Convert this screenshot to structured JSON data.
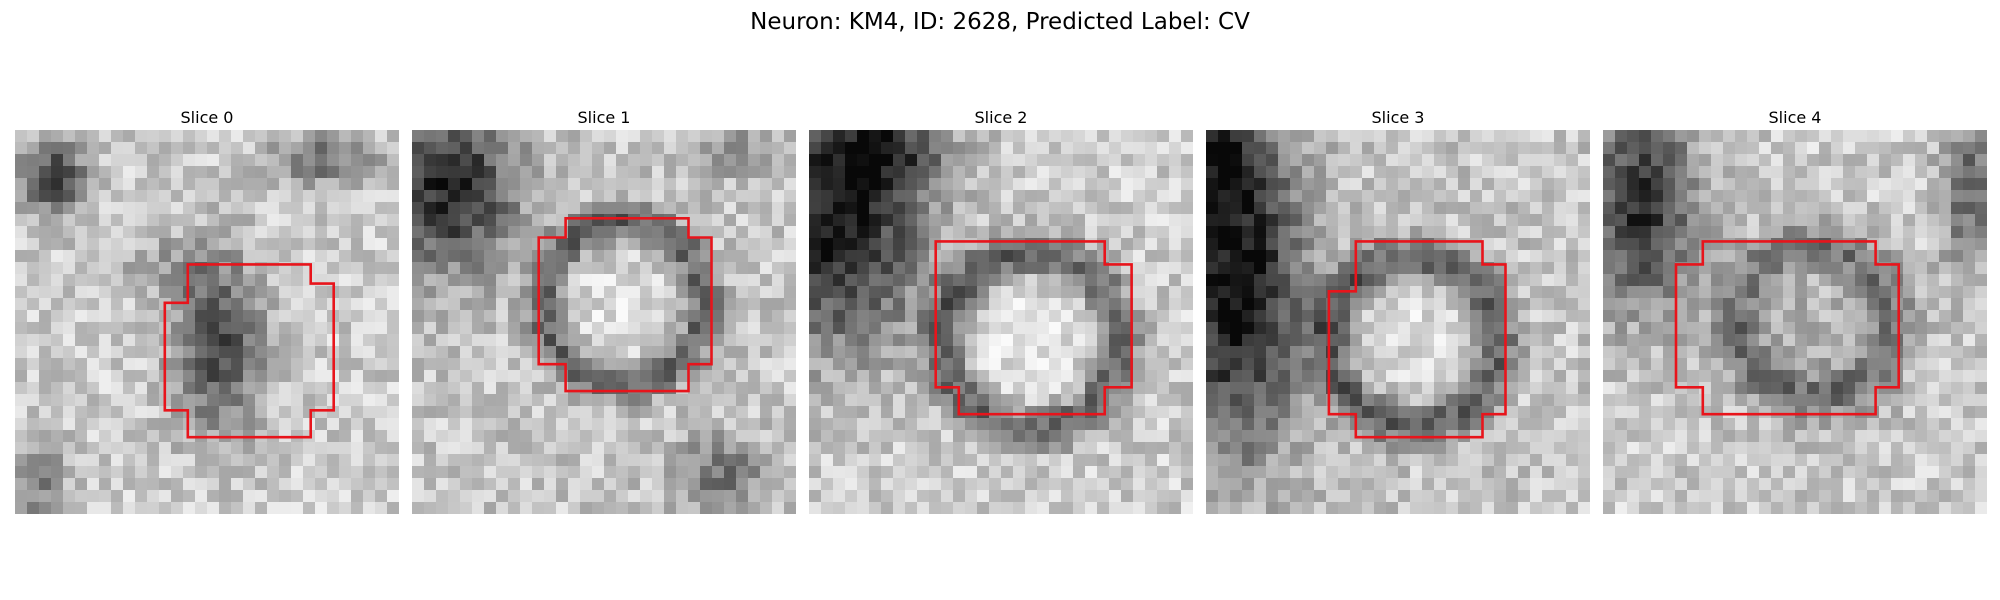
{
  "figure": {
    "title": "Neuron: KM4, ID: 2628, Predicted Label: CV"
  },
  "colors": {
    "outline": "#e8141b",
    "background": "#ffffff"
  },
  "panels": [
    {
      "title": "Slice 0"
    },
    {
      "title": "Slice 1"
    },
    {
      "title": "Slice 2"
    },
    {
      "title": "Slice 3"
    },
    {
      "title": "Slice 4"
    }
  ]
}
